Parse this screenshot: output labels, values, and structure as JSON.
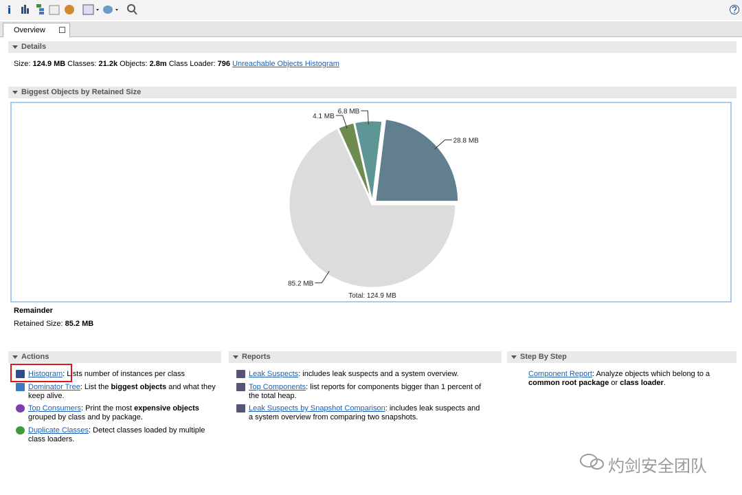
{
  "tab": "Overview",
  "details": {
    "header": "Details",
    "fields": [
      {
        "label": "Size:",
        "value": "124.9 MB"
      },
      {
        "label": "Classes:",
        "value": "21.2k"
      },
      {
        "label": "Objects:",
        "value": "2.8m"
      },
      {
        "label": "Class Loader:",
        "value": "796"
      }
    ],
    "link": "Unreachable Objects Histogram"
  },
  "biggest": {
    "header": "Biggest Objects by Retained Size",
    "pie": {
      "type": "pie",
      "values": [
        28.8,
        6.8,
        4.1,
        85.2
      ],
      "value_labels": [
        "28.8 MB",
        "6.8 MB",
        "4.1 MB",
        "85.2 MB"
      ],
      "colors": [
        "#617f8e",
        "#5e9595",
        "#6e8b50",
        "#dcdcdc"
      ],
      "total_label": "Total: 124.9 MB"
    },
    "selection_title": "Remainder",
    "selection_label": "Retained Size:",
    "selection_value": "85.2 MB"
  },
  "sections": [
    {
      "header": "Actions",
      "items": [
        {
          "link": "Histogram",
          "parts": [
            {
              "text": ": Lists number of instances per class"
            }
          ]
        },
        {
          "link": "Dominator Tree",
          "parts": [
            {
              "text": ": List the "
            },
            {
              "text": "biggest objects",
              "bold": true
            },
            {
              "text": " and what they keep alive."
            }
          ]
        },
        {
          "link": "Top Consumers",
          "parts": [
            {
              "text": ": Print the most "
            },
            {
              "text": "expensive objects",
              "bold": true
            },
            {
              "text": " grouped by class and by package."
            }
          ]
        },
        {
          "link": "Duplicate Classes",
          "parts": [
            {
              "text": ": Detect classes loaded by multiple class loaders."
            }
          ]
        }
      ]
    },
    {
      "header": "Reports",
      "items": [
        {
          "link": "Leak Suspects",
          "parts": [
            {
              "text": ": includes leak suspects and a system overview."
            }
          ]
        },
        {
          "link": "Top Components",
          "parts": [
            {
              "text": ": list reports for components bigger than 1 percent of the total heap."
            }
          ]
        },
        {
          "link": "Leak Suspects by Snapshot Comparison",
          "parts": [
            {
              "text": ": includes leak suspects and a system overview from comparing two snapshots."
            }
          ]
        }
      ]
    },
    {
      "header": "Step By Step",
      "items": [
        {
          "link": "Component Report",
          "parts": [
            {
              "text": ": Analyze objects which belong to a "
            },
            {
              "text": "common root package",
              "bold": true
            },
            {
              "text": " or "
            },
            {
              "text": "class loader",
              "bold": true
            },
            {
              "text": "."
            }
          ]
        }
      ]
    }
  ],
  "watermark": "灼剑安全团队"
}
